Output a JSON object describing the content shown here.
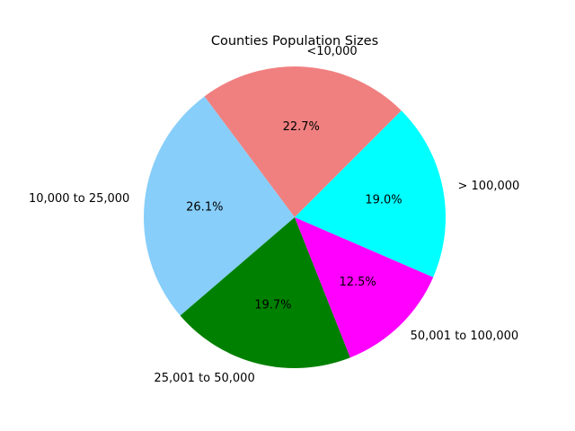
{
  "chart_data": {
    "type": "pie",
    "title": "Counties Population Sizes",
    "start_angle_deg": 45,
    "direction": "counterclockwise",
    "slices": [
      {
        "label": "<10,000",
        "value": 22.7,
        "pct_label": "22.7%",
        "color": "#f08080"
      },
      {
        "label": "10,000 to 25,000",
        "value": 26.1,
        "pct_label": "26.1%",
        "color": "#87cefa"
      },
      {
        "label": "25,001 to 50,000",
        "value": 19.7,
        "pct_label": "19.7%",
        "color": "#008000"
      },
      {
        "label": "50,001 to 100,000",
        "value": 12.5,
        "pct_label": "12.5%",
        "color": "#ff00ff"
      },
      {
        "label": "> 100,000",
        "value": 19.0,
        "pct_label": "19.0%",
        "color": "#00ffff"
      }
    ]
  }
}
